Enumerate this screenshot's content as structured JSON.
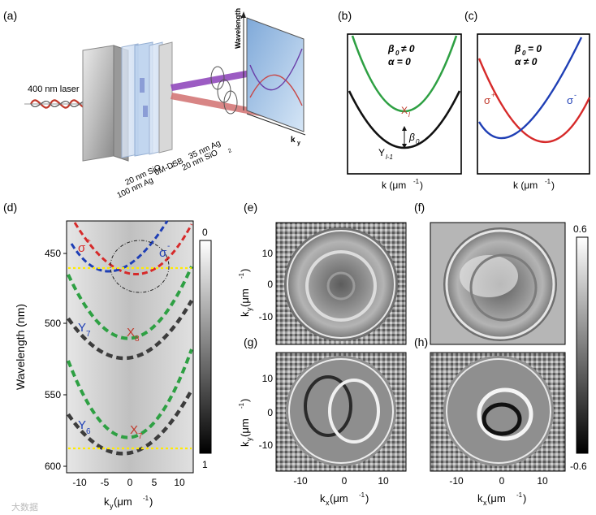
{
  "panels": {
    "a": {
      "label": "(a)",
      "laser": "400 nm laser",
      "layers": [
        "100 nm Ag",
        "20 nm SiO",
        "6M-DSB",
        "20 nm SiO",
        "35 nm Ag"
      ],
      "sio_sub": "2",
      "screen_ylabel": "Wavelength",
      "screen_xlabel": "k",
      "screen_xsub": "y"
    },
    "b": {
      "label": "(b)",
      "cond1": "β",
      "cond1_sub": "0",
      "cond1_rest": "≠ 0",
      "cond2": "α = 0",
      "upper": "X",
      "upper_sub": "l",
      "lower": "Y",
      "lower_sub": "l-1",
      "gap": "β",
      "gap_sub": "0",
      "xlabel": "k (μm",
      "xlabel_exp": "-1",
      "xlabel_end": ")"
    },
    "c": {
      "label": "(c)",
      "cond1": "β",
      "cond1_sub": "0",
      "cond1_rest": "= 0",
      "cond2": "α ≠ 0",
      "left": "σ",
      "left_sup": "+",
      "right": "σ",
      "right_sup": "-",
      "xlabel": "k (μm",
      "xlabel_exp": "-1",
      "xlabel_end": ")"
    },
    "d": {
      "label": "(d)",
      "ylabel": "Wavelength (nm)",
      "xlabel": "k",
      "xlabel_sub": "y",
      "xlabel_end": " (μm",
      "xlabel_exp": "-1",
      "xlabel_close": ")",
      "yticks": [
        "450",
        "500",
        "550",
        "600"
      ],
      "xticks": [
        "-10",
        "-5",
        "0",
        "5",
        "10"
      ],
      "colorbar_top": "0",
      "colorbar_bottom": "1",
      "labels": {
        "sp": "σ",
        "sp_sup": "+",
        "sm": "σ",
        "sm_sup": "-",
        "y7": "Y",
        "y7_sub": "7",
        "x8": "X",
        "x8_sub": "8",
        "y6": "Y",
        "y6_sub": "6",
        "x7": "X",
        "x7_sub": "7"
      }
    },
    "e": {
      "label": "(e)"
    },
    "f": {
      "label": "(f)"
    },
    "g": {
      "label": "(g)"
    },
    "h": {
      "label": "(h)"
    },
    "maps": {
      "ylabel": "k",
      "ylabel_sub": "y",
      "ylabel_end": " (μm",
      "ylabel_exp": "-1",
      "ylabel_close": ")",
      "yticks": [
        "10",
        "0",
        "-10"
      ],
      "xticks": [
        "-10",
        "0",
        "10"
      ],
      "xlabel": "k",
      "xlabel_sub": "x",
      "xlabel_end": " (μm",
      "xlabel_exp": "-1",
      "xlabel_close": ")",
      "colorbar_top": "0.6",
      "colorbar_bottom": "-0.6"
    }
  },
  "watermark": "大数据"
}
